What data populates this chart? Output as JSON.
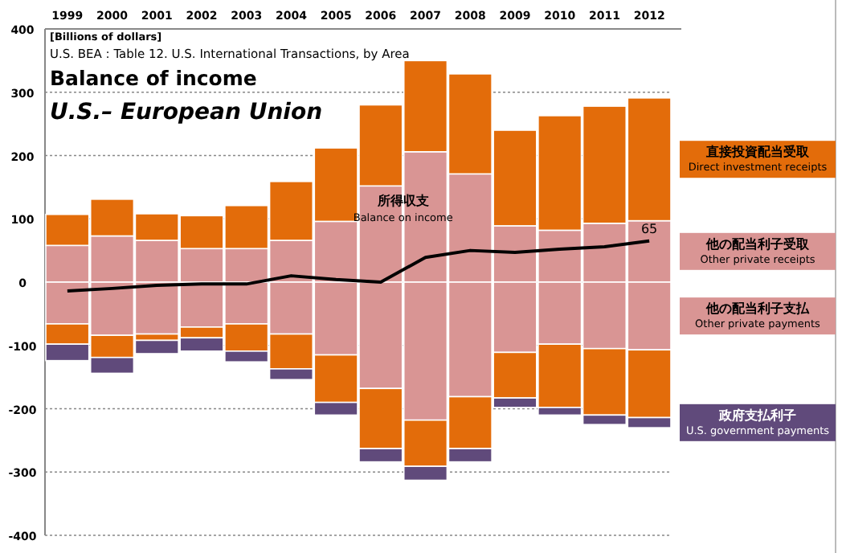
{
  "chart_data": {
    "type": "bar",
    "stacked": true,
    "title": "Balance of income",
    "subtitle": "U.S.– European Union",
    "annotations": [
      "[Billions of dollars]",
      "U.S.  BEA : Table 12. U.S. International Transactions, by Area"
    ],
    "categories": [
      "1999",
      "2000",
      "2001",
      "2002",
      "2003",
      "2004",
      "2005",
      "2006",
      "2007",
      "2008",
      "2009",
      "2010",
      "2011",
      "2012"
    ],
    "ylim": [
      -400,
      400
    ],
    "yticks": [
      -400,
      -300,
      -200,
      -100,
      0,
      100,
      200,
      300,
      400
    ],
    "grid": "y",
    "series": [
      {
        "name": "他の配当利子受取\nOther private receipts",
        "color": "#d99594",
        "values": [
          58,
          73,
          66,
          53,
          53,
          66,
          96,
          152,
          206,
          171,
          89,
          82,
          93,
          97
        ]
      },
      {
        "name": "直接投資配当受取\nDirect investment receipts",
        "color": "#e36c0a",
        "values": [
          49,
          58,
          42,
          52,
          68,
          93,
          116,
          128,
          144,
          158,
          151,
          181,
          185,
          194
        ]
      },
      {
        "name": "他の配当利子支払\nOther private payments",
        "color": "#d99594",
        "values": [
          -66,
          -84,
          -82,
          -71,
          -66,
          -82,
          -115,
          -168,
          -218,
          -181,
          -111,
          -98,
          -105,
          -107
        ]
      },
      {
        "color": "#e36c0a",
        "values": [
          -32,
          -35,
          -10,
          -17,
          -43,
          -55,
          -75,
          -95,
          -73,
          -82,
          -72,
          -100,
          -105,
          -107
        ]
      },
      {
        "name": "政府支払利子\nU.S. government  payments",
        "color": "#604a7b",
        "values": [
          -26,
          -25,
          -21,
          -21,
          -17,
          -17,
          -20,
          -21,
          -22,
          -21,
          -15,
          -12,
          -15,
          -16
        ]
      },
      {
        "type": "line",
        "name": "所得収支\nBalance on income",
        "color": "#000000",
        "values": [
          -14,
          -10,
          -5,
          -3,
          -3,
          10,
          4,
          0,
          39,
          50,
          47,
          52,
          56,
          65
        ],
        "value_labels": [
          null,
          null,
          null,
          null,
          null,
          null,
          null,
          null,
          null,
          null,
          null,
          null,
          null,
          "65"
        ]
      }
    ]
  }
}
